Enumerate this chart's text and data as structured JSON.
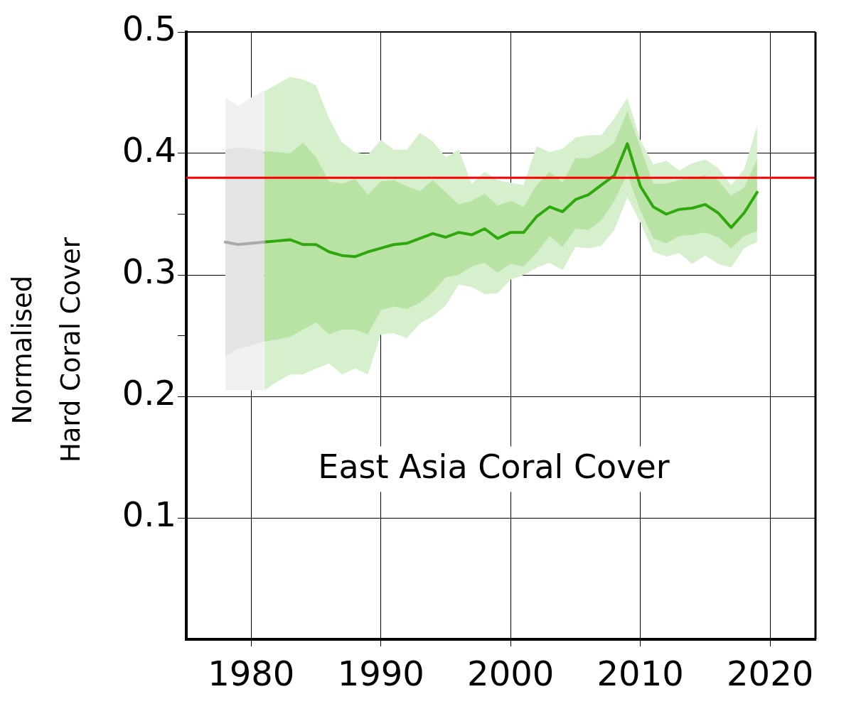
{
  "chart_data": {
    "type": "line",
    "title": "East Asia Coral Cover",
    "ylabel": "Normalised\nHard Coral Cover",
    "xlim": [
      1975,
      2023.5
    ],
    "xticks": [
      1980,
      1990,
      2000,
      2010,
      2020
    ],
    "ylim": [
      0,
      0.5
    ],
    "yticks": [
      0.1,
      0.2,
      {
        "value": 0.25,
        "label": null
      },
      0.3,
      {
        "value": 0.35,
        "label": null
      },
      0.4,
      0.5
    ],
    "grid": true,
    "legend": false,
    "marker": "none",
    "line_style": "solid",
    "ref_lines": [
      {
        "axis": "y",
        "value": 0.38,
        "color": "#ff0000"
      }
    ],
    "series": [
      {
        "color": "#f0f0f0",
        "x": [
          1978,
          1979,
          1980,
          1981
        ],
        "values": [
          null,
          null,
          null,
          null
        ],
        "lower": [
          0.205,
          0.205,
          0.205,
          0.205
        ],
        "upper": [
          0.446,
          0.439,
          0.446,
          0.452
        ]
      },
      {
        "color": "#e4e4e4",
        "x": [
          1978,
          1979,
          1980,
          1981
        ],
        "values": [
          null,
          null,
          null,
          null
        ],
        "lower": [
          0.233,
          0.239,
          0.242,
          0.245
        ],
        "upper": [
          0.403,
          0.405,
          0.404,
          0.402
        ]
      },
      {
        "color": "#d6efcc",
        "x": [
          1981,
          1982,
          1983,
          1984,
          1985,
          1986,
          1987,
          1988,
          1989,
          1990,
          1991,
          1992,
          1993,
          1994,
          1995,
          1996,
          1997,
          1998,
          1999,
          2000,
          2001,
          2002,
          2003,
          2004,
          2005,
          2006,
          2007,
          2008,
          2009,
          2010,
          2011,
          2012,
          2013,
          2014,
          2015,
          2016,
          2017,
          2018,
          2019
        ],
        "values": [
          null,
          null,
          null,
          null,
          null,
          null,
          null,
          null,
          null,
          null,
          null,
          null,
          null,
          null,
          null,
          null,
          null,
          null,
          null,
          null,
          null,
          null,
          null,
          null,
          null,
          null,
          null,
          null,
          null,
          null,
          null,
          null,
          null,
          null,
          null,
          null,
          null,
          null,
          null
        ],
        "lower": [
          0.205,
          0.212,
          0.218,
          0.218,
          0.223,
          0.227,
          0.218,
          0.223,
          0.218,
          0.251,
          0.252,
          0.248,
          0.26,
          0.266,
          0.275,
          0.292,
          0.29,
          0.284,
          0.285,
          0.296,
          0.3,
          0.306,
          0.31,
          0.304,
          0.323,
          0.322,
          0.324,
          0.337,
          0.364,
          0.343,
          0.319,
          0.315,
          0.318,
          0.309,
          0.316,
          0.309,
          0.306,
          0.322,
          0.327
        ],
        "upper": [
          0.451,
          0.457,
          0.463,
          0.461,
          0.456,
          0.429,
          0.409,
          0.401,
          0.399,
          0.411,
          0.403,
          0.403,
          0.417,
          0.41,
          0.397,
          0.403,
          0.375,
          0.385,
          0.378,
          0.376,
          0.374,
          0.406,
          0.401,
          0.404,
          0.413,
          0.415,
          0.415,
          0.429,
          0.446,
          0.411,
          0.391,
          0.394,
          0.386,
          0.392,
          0.395,
          0.388,
          0.374,
          0.387,
          0.423
        ]
      },
      {
        "color": "#b8e3a5",
        "x": [
          1981,
          1982,
          1983,
          1984,
          1985,
          1986,
          1987,
          1988,
          1989,
          1990,
          1991,
          1992,
          1993,
          1994,
          1995,
          1996,
          1997,
          1998,
          1999,
          2000,
          2001,
          2002,
          2003,
          2004,
          2005,
          2006,
          2007,
          2008,
          2009,
          2010,
          2011,
          2012,
          2013,
          2014,
          2015,
          2016,
          2017,
          2018,
          2019
        ],
        "values": [
          null,
          null,
          null,
          null,
          null,
          null,
          null,
          null,
          null,
          null,
          null,
          null,
          null,
          null,
          null,
          null,
          null,
          null,
          null,
          null,
          null,
          null,
          null,
          null,
          null,
          null,
          null,
          null,
          null,
          null,
          null,
          null,
          null,
          null,
          null,
          null,
          null,
          null,
          null
        ],
        "lower": [
          0.245,
          0.247,
          0.249,
          0.255,
          0.261,
          0.251,
          0.255,
          0.255,
          0.251,
          0.271,
          0.274,
          0.272,
          0.277,
          0.286,
          0.298,
          0.3,
          0.307,
          0.31,
          0.302,
          0.309,
          0.307,
          0.318,
          0.332,
          0.323,
          0.338,
          0.337,
          0.345,
          0.361,
          0.383,
          0.353,
          0.33,
          0.326,
          0.332,
          0.333,
          0.335,
          0.331,
          0.322,
          0.332,
          0.336
        ],
        "upper": [
          0.402,
          0.401,
          0.4,
          0.409,
          0.397,
          0.377,
          0.375,
          0.379,
          0.366,
          0.377,
          0.378,
          0.373,
          0.369,
          0.378,
          0.368,
          0.358,
          0.361,
          0.367,
          0.357,
          0.361,
          0.356,
          0.374,
          0.385,
          0.376,
          0.396,
          0.396,
          0.401,
          0.409,
          0.435,
          0.405,
          0.375,
          0.375,
          0.378,
          0.38,
          0.382,
          0.378,
          0.365,
          0.372,
          0.395
        ]
      },
      {
        "color": "#aaaaaa",
        "x": [
          1978,
          1979,
          1980,
          1981
        ],
        "values": [
          0.327,
          0.325,
          0.326,
          0.327
        ]
      },
      {
        "color": "#2ea80c",
        "x": [
          1981,
          1982,
          1983,
          1984,
          1985,
          1986,
          1987,
          1988,
          1989,
          1990,
          1991,
          1992,
          1993,
          1994,
          1995,
          1996,
          1997,
          1998,
          1999,
          2000,
          2001,
          2002,
          2003,
          2004,
          2005,
          2006,
          2007,
          2008,
          2009,
          2010,
          2011,
          2012,
          2013,
          2014,
          2015,
          2016,
          2017,
          2018,
          2019
        ],
        "values": [
          0.327,
          0.328,
          0.329,
          0.325,
          0.325,
          0.319,
          0.316,
          0.315,
          0.319,
          0.322,
          0.325,
          0.326,
          0.33,
          0.334,
          0.331,
          0.335,
          0.333,
          0.338,
          0.33,
          0.335,
          0.335,
          0.348,
          0.356,
          0.352,
          0.362,
          0.366,
          0.374,
          0.382,
          0.408,
          0.373,
          0.356,
          0.35,
          0.354,
          0.355,
          0.358,
          0.351,
          0.339,
          0.351,
          0.368
        ]
      }
    ]
  }
}
